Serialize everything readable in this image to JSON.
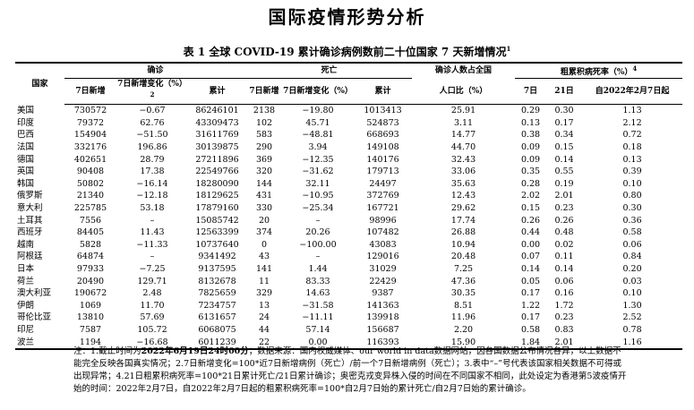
{
  "header": {
    "title": "国际疫情形势分析"
  },
  "table": {
    "caption": "表 1 全球 COVID-19 累计确诊病例数前二十位国家 7 天新增情况",
    "caption_note": "1",
    "head": {
      "country": "国家",
      "confirmed": "确诊",
      "deaths": "死亡",
      "ratio_line1": "确诊人数占全国",
      "ratio_line2": "人口比（%）",
      "cfr": "粗累积病死率（%）",
      "cfr_note": "4",
      "new7": "7日新增",
      "change": "7日新增变化（%）",
      "change_note": "2",
      "cum": "累计",
      "d7": "7日",
      "d21": "21日",
      "since": "自2022年2月7日起"
    },
    "rows": [
      [
        "美国",
        "730572",
        "−0.67",
        "86246101",
        "2138",
        "−19.80",
        "1013413",
        "25.91",
        "0.29",
        "0.30",
        "1.13"
      ],
      [
        "印度",
        "79372",
        "62.76",
        "43309473",
        "102",
        "45.71",
        "524873",
        "3.11",
        "0.13",
        "0.17",
        "2.12"
      ],
      [
        "巴西",
        "154904",
        "−51.50",
        "31611769",
        "583",
        "−48.81",
        "668693",
        "14.77",
        "0.38",
        "0.34",
        "0.72"
      ],
      [
        "法国",
        "332176",
        "196.86",
        "30139875",
        "290",
        "3.94",
        "149108",
        "44.70",
        "0.09",
        "0.15",
        "0.18"
      ],
      [
        "德国",
        "402651",
        "28.79",
        "27211896",
        "369",
        "−12.35",
        "140176",
        "32.43",
        "0.09",
        "0.14",
        "0.13"
      ],
      [
        "英国",
        "90408",
        "17.38",
        "22549766",
        "320",
        "−31.62",
        "179713",
        "33.06",
        "0.35",
        "0.55",
        "0.39"
      ],
      [
        "韩国",
        "50802",
        "−16.14",
        "18280090",
        "144",
        "32.11",
        "24497",
        "35.63",
        "0.28",
        "0.19",
        "0.10"
      ],
      [
        "俄罗斯",
        "21340",
        "−12.18",
        "18129625",
        "431",
        "−10.95",
        "372769",
        "12.43",
        "2.02",
        "2.01",
        "0.80"
      ],
      [
        "意大利",
        "225785",
        "53.18",
        "17879160",
        "330",
        "−25.34",
        "167721",
        "29.62",
        "0.15",
        "0.23",
        "0.30"
      ],
      [
        "土耳其",
        "7556",
        "–",
        "15085742",
        "20",
        "–",
        "98996",
        "17.74",
        "0.26",
        "0.26",
        "0.36"
      ],
      [
        "西班牙",
        "84405",
        "11.43",
        "12563399",
        "374",
        "20.26",
        "107482",
        "26.88",
        "0.44",
        "0.48",
        "0.58"
      ],
      [
        "越南",
        "5828",
        "−11.33",
        "10737640",
        "0",
        "−100.00",
        "43083",
        "10.94",
        "0.00",
        "0.02",
        "0.06"
      ],
      [
        "阿根廷",
        "64874",
        "–",
        "9341492",
        "43",
        "–",
        "129016",
        "20.48",
        "0.07",
        "0.11",
        "0.84"
      ],
      [
        "日本",
        "97933",
        "−7.25",
        "9137595",
        "141",
        "1.44",
        "31029",
        "7.25",
        "0.14",
        "0.14",
        "0.20"
      ],
      [
        "荷兰",
        "20490",
        "129.71",
        "8132678",
        "11",
        "83.33",
        "22429",
        "47.36",
        "0.05",
        "0.06",
        "0.03"
      ],
      [
        "澳大利亚",
        "190672",
        "2.48",
        "7825659",
        "329",
        "14.63",
        "9387",
        "30.35",
        "0.17",
        "0.16",
        "0.10"
      ],
      [
        "伊朗",
        "1069",
        "11.70",
        "7234757",
        "13",
        "−31.58",
        "141363",
        "8.51",
        "1.22",
        "1.72",
        "1.30"
      ],
      [
        "哥伦比亚",
        "13810",
        "57.69",
        "6131657",
        "24",
        "−11.11",
        "139918",
        "11.96",
        "0.17",
        "0.23",
        "2.52"
      ],
      [
        "印尼",
        "7587",
        "105.72",
        "6068075",
        "44",
        "57.14",
        "156687",
        "2.20",
        "0.58",
        "0.83",
        "0.78"
      ],
      [
        "波兰",
        "1194",
        "−16.68",
        "6011239",
        "22",
        "0.00",
        "116393",
        "15.90",
        "1.84",
        "2.01",
        "1.16"
      ]
    ]
  },
  "note": {
    "prefix": "注：1.截止时间为",
    "date": "2022年6月19日24时00分",
    "text": "；数据来源：国内权威媒体、our world in data数据网站，因各国数据公布情况各异，以上数据不能完全反映各国真实情况；2.7日新增变化=100*近7日新增病例（死亡）/前一个7日新增病例（死亡）；3.表中“–”号代表该国家相关数据不可得或出现异常；4.21日粗累积病死率=100*21日累计死亡/21日累计确诊；奥密克戎变异株入侵的时间在不同国家不相同，此处设定为香港第5波疫情开始的时间：2022年2月7日，自2022年2月7日起的粗累积病死率=100*自2月7日始的累计死亡/自2月7日始的累计确诊。"
  }
}
